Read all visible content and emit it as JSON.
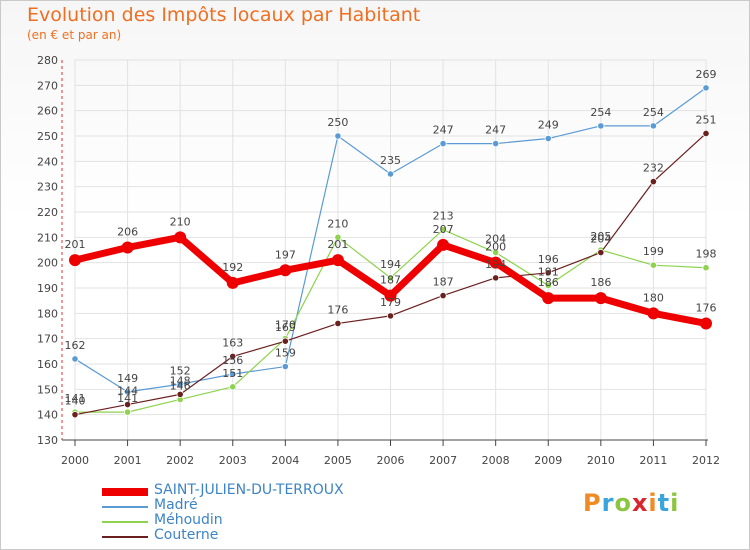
{
  "header": {
    "title": "Evolution des Impôts locaux par Habitant",
    "subtitle": "(en € et par an)"
  },
  "logo": {
    "letters": [
      "P",
      "r",
      "o",
      "x",
      "i",
      "t",
      "i"
    ],
    "colors": [
      "#f08a24",
      "#3aa4dc",
      "#8cc63f",
      "#d9262c",
      "#f08a24",
      "#3aa4dc",
      "#8cc63f"
    ]
  },
  "chart_data": {
    "type": "line",
    "title": "Evolution des Impôts locaux par Habitant",
    "ylabel": "(en € et par an)",
    "xlabel": "",
    "x": [
      2000,
      2001,
      2002,
      2003,
      2004,
      2005,
      2006,
      2007,
      2008,
      2009,
      2010,
      2011,
      2012
    ],
    "ylim": [
      130,
      280
    ],
    "yticks": [
      130,
      140,
      150,
      160,
      170,
      180,
      190,
      200,
      210,
      220,
      230,
      240,
      250,
      260,
      270,
      280
    ],
    "grid": true,
    "legend_position": "bottom-left",
    "series": [
      {
        "name": "Madré",
        "color": "#5b9bd5",
        "values": [
          162,
          149,
          152,
          156,
          159,
          250,
          235,
          247,
          247,
          249,
          254,
          254,
          269
        ]
      },
      {
        "name": "Méhoudin",
        "color": "#8ed34e",
        "values": [
          141,
          141,
          146,
          151,
          170,
          210,
          194,
          213,
          204,
          191,
          205,
          199,
          198
        ]
      },
      {
        "name": "Couterne",
        "color": "#6b1f1f",
        "values": [
          140,
          144,
          148,
          163,
          169,
          176,
          179,
          187,
          194,
          196,
          204,
          232,
          251
        ]
      },
      {
        "name": "SAINT-JULIEN-DU-TERROUX",
        "color": "#ee0000",
        "values": [
          201,
          206,
          210,
          192,
          197,
          201,
          187,
          207,
          200,
          186,
          186,
          180,
          176
        ]
      }
    ],
    "legend_order": [
      "SAINT-JULIEN-DU-TERROUX",
      "Madré",
      "Méhoudin",
      "Couterne"
    ]
  }
}
